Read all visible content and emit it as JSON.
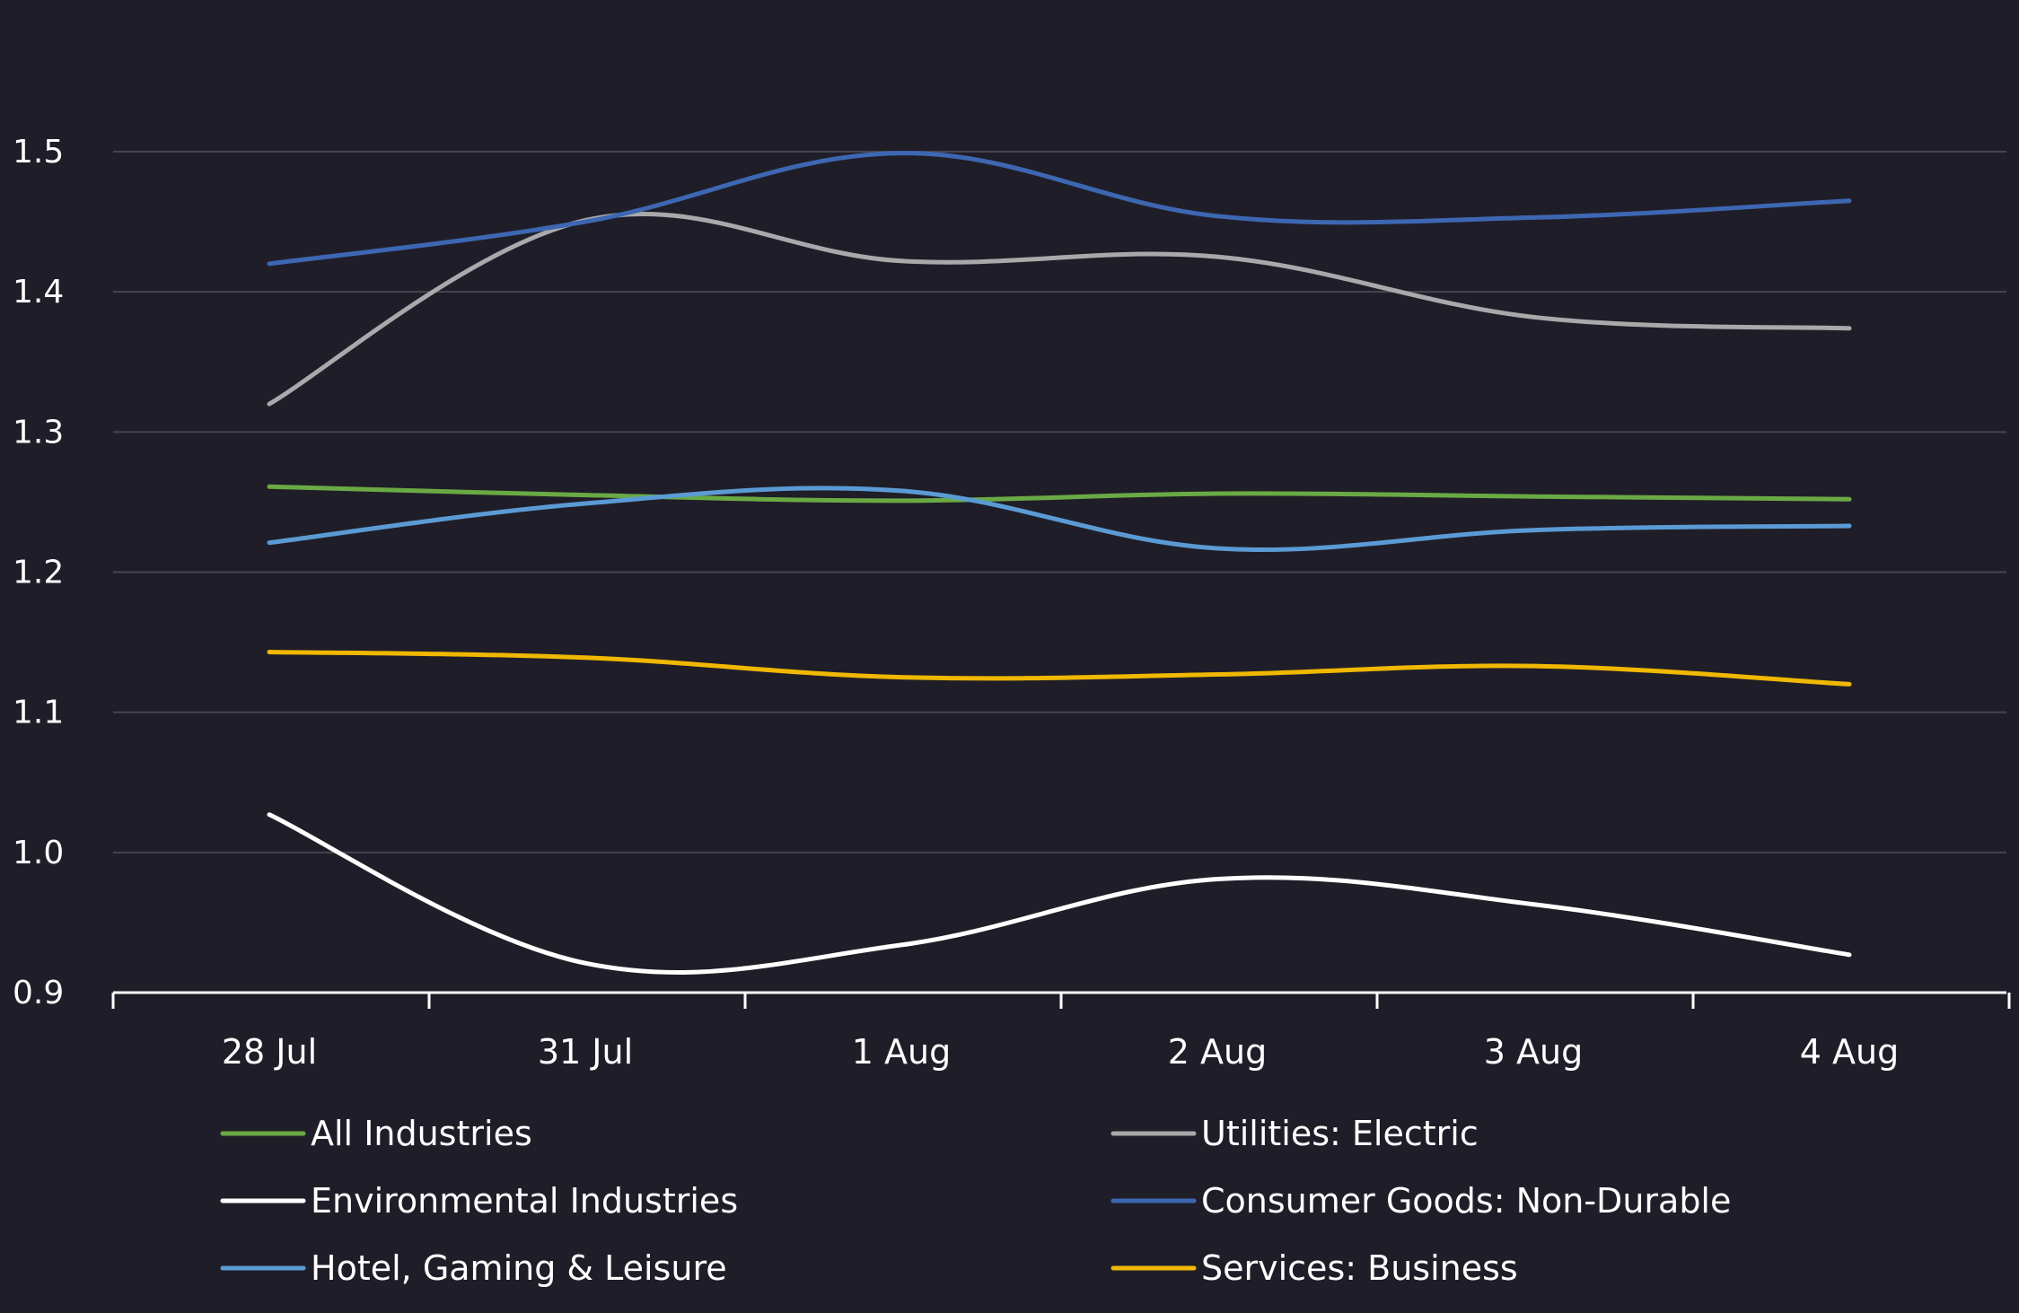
{
  "chart_data": {
    "type": "line",
    "title": "",
    "xlabel": "",
    "ylabel": "",
    "categories": [
      "28 Jul",
      "31 Jul",
      "1 Aug",
      "2 Aug",
      "3 Aug",
      "4 Aug"
    ],
    "ylim": [
      0.9,
      1.5
    ],
    "yticks": [
      "0.9",
      "1.0",
      "1.1",
      "1.2",
      "1.3",
      "1.4",
      "1.5"
    ],
    "grid": true,
    "legend_position": "bottom",
    "series": [
      {
        "name": "All Industries",
        "color": "#6aaa44",
        "values": [
          1.261,
          1.255,
          1.251,
          1.256,
          1.254,
          1.252
        ]
      },
      {
        "name": "Utilities: Electric",
        "color": "#a9a9ac",
        "values": [
          1.32,
          1.451,
          1.422,
          1.425,
          1.382,
          1.374
        ]
      },
      {
        "name": "Environmental Industries",
        "color": "#ffffff",
        "values": [
          1.027,
          0.921,
          0.934,
          0.981,
          0.963,
          0.927
        ]
      },
      {
        "name": "Consumer Goods: Non-Durable",
        "color": "#3d67b2",
        "values": [
          1.42,
          1.45,
          1.499,
          1.454,
          1.453,
          1.465
        ]
      },
      {
        "name": "Hotel, Gaming & Leisure",
        "color": "#5b9bd5",
        "values": [
          1.221,
          1.249,
          1.258,
          1.217,
          1.23,
          1.233
        ]
      },
      {
        "name": "Services: Business",
        "color": "#f0b800",
        "values": [
          1.143,
          1.139,
          1.125,
          1.127,
          1.133,
          1.12
        ]
      }
    ]
  }
}
